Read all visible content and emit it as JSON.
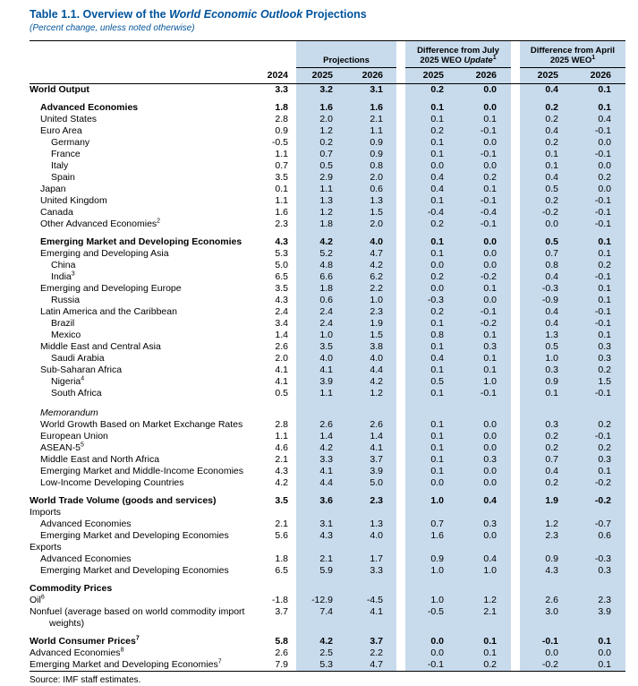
{
  "title": {
    "prefix": "Table 1.1. Overview of the ",
    "italic_part": "World Economic Outlook",
    "suffix": " Projections"
  },
  "subtitle": "(Percent change, unless noted otherwise)",
  "source": "Source: IMF staff estimates.",
  "colors": {
    "title_blue": "#00539b",
    "shade_blue": "#c8dbec"
  },
  "header": {
    "projections_label": "Projections",
    "diff_july": {
      "line1": "Difference from July",
      "line2_pre": "2025 WEO ",
      "line2_italic": "Update",
      "sup": "1"
    },
    "diff_april": {
      "line1": "Difference from April",
      "line2": "2025 WEO",
      "sup": "1"
    },
    "year_2024": "2024",
    "years": {
      "proj_2025": "2025",
      "proj_2026": "2026",
      "july_2025": "2025",
      "july_2026": "2026",
      "april_2025": "2025",
      "april_2026": "2026"
    }
  },
  "rows": [
    {
      "label": "World Output",
      "indent": 0,
      "bold": true,
      "values": [
        "3.3",
        "3.2",
        "3.1",
        "0.2",
        "0.0",
        "0.4",
        "0.1"
      ]
    },
    {
      "spacer": 7
    },
    {
      "label": "Advanced Economies",
      "indent": 1,
      "bold": true,
      "values": [
        "1.8",
        "1.6",
        "1.6",
        "0.1",
        "0.0",
        "0.2",
        "0.1"
      ]
    },
    {
      "label": "United States",
      "indent": 1,
      "values": [
        "2.8",
        "2.0",
        "2.1",
        "0.1",
        "0.1",
        "0.2",
        "0.4"
      ]
    },
    {
      "label": "Euro Area",
      "indent": 1,
      "values": [
        "0.9",
        "1.2",
        "1.1",
        "0.2",
        "-0.1",
        "0.4",
        "-0.1"
      ]
    },
    {
      "label": "Germany",
      "indent": 2,
      "values": [
        "-0.5",
        "0.2",
        "0.9",
        "0.1",
        "0.0",
        "0.2",
        "0.0"
      ]
    },
    {
      "label": "France",
      "indent": 2,
      "values": [
        "1.1",
        "0.7",
        "0.9",
        "0.1",
        "-0.1",
        "0.1",
        "-0.1"
      ]
    },
    {
      "label": "Italy",
      "indent": 2,
      "values": [
        "0.7",
        "0.5",
        "0.8",
        "0.0",
        "0.0",
        "0.1",
        "0.0"
      ]
    },
    {
      "label": "Spain",
      "indent": 2,
      "values": [
        "3.5",
        "2.9",
        "2.0",
        "0.4",
        "0.2",
        "0.4",
        "0.2"
      ]
    },
    {
      "label": "Japan",
      "indent": 1,
      "values": [
        "0.1",
        "1.1",
        "0.6",
        "0.4",
        "0.1",
        "0.5",
        "0.0"
      ]
    },
    {
      "label": "United Kingdom",
      "indent": 1,
      "values": [
        "1.1",
        "1.3",
        "1.3",
        "0.1",
        "-0.1",
        "0.2",
        "-0.1"
      ]
    },
    {
      "label": "Canada",
      "indent": 1,
      "values": [
        "1.6",
        "1.2",
        "1.5",
        "-0.4",
        "-0.4",
        "-0.2",
        "-0.1"
      ]
    },
    {
      "label": "Other Advanced Economies",
      "sup": "2",
      "indent": 1,
      "values": [
        "2.3",
        "1.8",
        "2.0",
        "0.2",
        "-0.1",
        "0.0",
        "-0.1"
      ]
    },
    {
      "spacer": 7
    },
    {
      "label": "Emerging Market and Developing Economies",
      "indent": 1,
      "bold": true,
      "values": [
        "4.3",
        "4.2",
        "4.0",
        "0.1",
        "0.0",
        "0.5",
        "0.1"
      ]
    },
    {
      "label": "Emerging and Developing Asia",
      "indent": 1,
      "values": [
        "5.3",
        "5.2",
        "4.7",
        "0.1",
        "0.0",
        "0.7",
        "0.1"
      ]
    },
    {
      "label": "China",
      "indent": 2,
      "values": [
        "5.0",
        "4.8",
        "4.2",
        "0.0",
        "0.0",
        "0.8",
        "0.2"
      ]
    },
    {
      "label": "India",
      "sup": "3",
      "indent": 2,
      "values": [
        "6.5",
        "6.6",
        "6.2",
        "0.2",
        "-0.2",
        "0.4",
        "-0.1"
      ]
    },
    {
      "label": "Emerging and Developing Europe",
      "indent": 1,
      "values": [
        "3.5",
        "1.8",
        "2.2",
        "0.0",
        "0.1",
        "-0.3",
        "0.1"
      ]
    },
    {
      "label": "Russia",
      "indent": 2,
      "values": [
        "4.3",
        "0.6",
        "1.0",
        "-0.3",
        "0.0",
        "-0.9",
        "0.1"
      ]
    },
    {
      "label": "Latin America and the Caribbean",
      "indent": 1,
      "values": [
        "2.4",
        "2.4",
        "2.3",
        "0.2",
        "-0.1",
        "0.4",
        "-0.1"
      ]
    },
    {
      "label": "Brazil",
      "indent": 2,
      "values": [
        "3.4",
        "2.4",
        "1.9",
        "0.1",
        "-0.2",
        "0.4",
        "-0.1"
      ]
    },
    {
      "label": "Mexico",
      "indent": 2,
      "values": [
        "1.4",
        "1.0",
        "1.5",
        "0.8",
        "0.1",
        "1.3",
        "0.1"
      ]
    },
    {
      "label": "Middle East and Central Asia",
      "indent": 1,
      "values": [
        "2.6",
        "3.5",
        "3.8",
        "0.1",
        "0.3",
        "0.5",
        "0.3"
      ]
    },
    {
      "label": "Saudi Arabia",
      "indent": 2,
      "values": [
        "2.0",
        "4.0",
        "4.0",
        "0.4",
        "0.1",
        "1.0",
        "0.3"
      ]
    },
    {
      "label": "Sub-Saharan Africa",
      "indent": 1,
      "values": [
        "4.1",
        "4.1",
        "4.4",
        "0.1",
        "0.1",
        "0.3",
        "0.2"
      ]
    },
    {
      "label": "Nigeria",
      "sup": "4",
      "indent": 2,
      "values": [
        "4.1",
        "3.9",
        "4.2",
        "0.5",
        "1.0",
        "0.9",
        "1.5"
      ]
    },
    {
      "label": "South Africa",
      "indent": 2,
      "values": [
        "0.5",
        "1.1",
        "1.2",
        "0.1",
        "-0.1",
        "0.1",
        "-0.1"
      ]
    },
    {
      "spacer": 9
    },
    {
      "label": "Memorandum",
      "indent": 1,
      "italic": true,
      "values": null
    },
    {
      "label": "World Growth Based on Market Exchange Rates",
      "indent": 1,
      "values": [
        "2.8",
        "2.6",
        "2.6",
        "0.1",
        "0.0",
        "0.3",
        "0.2"
      ]
    },
    {
      "label": "European Union",
      "indent": 1,
      "values": [
        "1.1",
        "1.4",
        "1.4",
        "0.1",
        "0.0",
        "0.2",
        "-0.1"
      ]
    },
    {
      "label": "ASEAN-5",
      "sup": "5",
      "indent": 1,
      "values": [
        "4.6",
        "4.2",
        "4.1",
        "0.1",
        "0.0",
        "0.2",
        "0.2"
      ]
    },
    {
      "label": "Middle East and North Africa",
      "indent": 1,
      "values": [
        "2.1",
        "3.3",
        "3.7",
        "0.1",
        "0.3",
        "0.7",
        "0.3"
      ]
    },
    {
      "label": "Emerging Market and Middle-Income Economies",
      "indent": 1,
      "values": [
        "4.3",
        "4.1",
        "3.9",
        "0.1",
        "0.0",
        "0.4",
        "0.1"
      ]
    },
    {
      "label": "Low-Income Developing Countries",
      "indent": 1,
      "values": [
        "4.2",
        "4.4",
        "5.0",
        "0.0",
        "0.0",
        "0.2",
        "-0.2"
      ]
    },
    {
      "spacer": 7
    },
    {
      "label": "World Trade Volume (goods and services)",
      "indent": 0,
      "bold": true,
      "values": [
        "3.5",
        "3.6",
        "2.3",
        "1.0",
        "0.4",
        "1.9",
        "-0.2"
      ]
    },
    {
      "label": "Imports",
      "indent": 0,
      "values": null
    },
    {
      "label": "Advanced Economies",
      "indent": 1,
      "values": [
        "2.1",
        "3.1",
        "1.3",
        "0.7",
        "0.3",
        "1.2",
        "-0.7"
      ]
    },
    {
      "label": "Emerging Market and Developing Economies",
      "indent": 1,
      "values": [
        "5.6",
        "4.3",
        "4.0",
        "1.6",
        "0.0",
        "2.3",
        "0.6"
      ]
    },
    {
      "label": "Exports",
      "indent": 0,
      "values": null
    },
    {
      "label": "Advanced Economies",
      "indent": 1,
      "values": [
        "1.8",
        "2.1",
        "1.7",
        "0.9",
        "0.4",
        "0.9",
        "-0.3"
      ]
    },
    {
      "label": "Emerging Market and Developing Economies",
      "indent": 1,
      "values": [
        "6.5",
        "5.9",
        "3.3",
        "1.0",
        "1.0",
        "4.3",
        "0.3"
      ]
    },
    {
      "spacer": 7
    },
    {
      "label": "Commodity Prices",
      "indent": 0,
      "bold": true,
      "values": null
    },
    {
      "label": "Oil",
      "sup": "6",
      "indent": 0,
      "values": [
        "-1.8",
        "-12.9",
        "-4.5",
        "1.0",
        "1.2",
        "2.6",
        "2.3"
      ]
    },
    {
      "label": "Nonfuel (average based on world commodity import weights)",
      "indent": 0,
      "values": [
        "3.7",
        "7.4",
        "4.1",
        "-0.5",
        "2.1",
        "3.0",
        "3.9"
      ]
    },
    {
      "spacer": 7
    },
    {
      "label": "World Consumer Prices",
      "sup": "7",
      "indent": 0,
      "bold": true,
      "values": [
        "5.8",
        "4.2",
        "3.7",
        "0.0",
        "0.1",
        "-0.1",
        "0.1"
      ]
    },
    {
      "label": "Advanced Economies",
      "sup": "8",
      "indent": 0,
      "values": [
        "2.6",
        "2.5",
        "2.2",
        "0.0",
        "0.1",
        "0.0",
        "0.0"
      ]
    },
    {
      "label": "Emerging Market and Developing Economies",
      "sup": "7",
      "indent": 0,
      "values": [
        "7.9",
        "5.3",
        "4.7",
        "-0.1",
        "0.2",
        "-0.2",
        "0.1"
      ]
    }
  ]
}
